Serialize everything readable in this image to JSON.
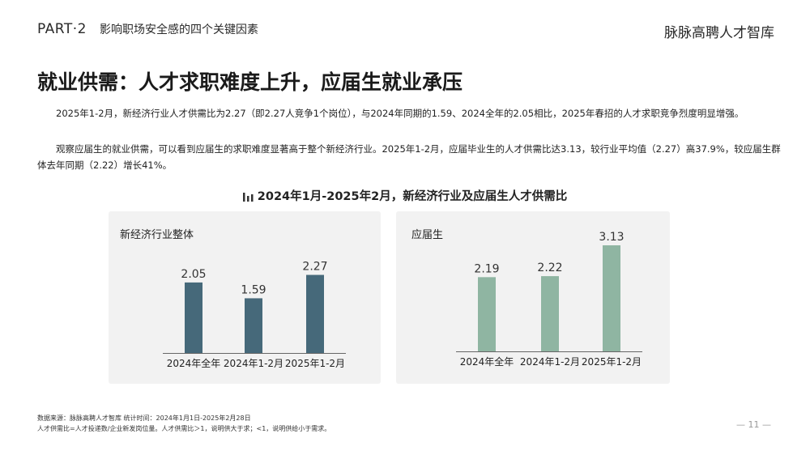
{
  "header": {
    "part": "PART·2",
    "section": "影响职场安全感的四个关键因素",
    "brand": "脉脉高聘人才智库"
  },
  "title": "就业供需：人才求职难度上升，应届生就业承压",
  "paragraphs": [
    "2025年1-2月，新经济行业人才供需比为2.27（即2.27人竞争1个岗位），与2024年同期的1.59、2024全年的2.05相比，2025年春招的人才求职竞争烈度明显增强。",
    "观察应届生的就业供需，可以看到应届生的求职难度显著高于整个新经济行业。2025年1-2月，应届毕业生的人才供需比达3.13，较行业平均值（2.27）高37.9%，较应届生群体去年同期（2.22）增长41%。"
  ],
  "chart_heading": "2024年1月-2025年2月，新经济行业及应届生人才供需比",
  "chart_icon": "bar-chart-icon",
  "chart_data": [
    {
      "type": "bar",
      "title": "新经济行业整体",
      "categories": [
        "2024年全年",
        "2024年1-2月",
        "2025年1-2月"
      ],
      "values": [
        2.05,
        1.59,
        2.27
      ],
      "ylim": [
        0,
        3.13
      ],
      "color": "#46697a",
      "grid": false,
      "legend": "none"
    },
    {
      "type": "bar",
      "title": "应届生",
      "categories": [
        "2024年全年",
        "2024年1-2月",
        "2025年1-2月"
      ],
      "values": [
        2.19,
        2.22,
        3.13
      ],
      "ylim": [
        0,
        3.13
      ],
      "color": "#8fb5a2",
      "grid": false,
      "legend": "none"
    }
  ],
  "footer": {
    "source": "数据来源：脉脉高聘人才智库      统计时间：2024年1月1日-2025年2月28日",
    "note": "人才供需比=人才投递数/企业新发岗位量。人才供需比＞1，说明供大于求；<1，说明供给小于需求。",
    "page": "— 11 —"
  },
  "colors": {
    "axis": "#666666",
    "panel_bg": "#f2f2f2"
  }
}
